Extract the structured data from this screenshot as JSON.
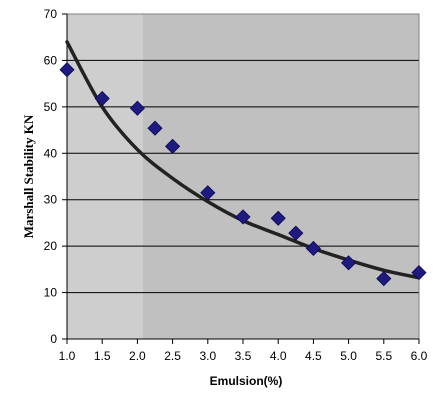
{
  "chart_data": {
    "type": "scatter",
    "title": "",
    "xlabel": "Emulsion(%)",
    "ylabel": "Marshall Stability KN",
    "xlim": [
      1.0,
      6.0
    ],
    "ylim": [
      0,
      70
    ],
    "x_ticks": [
      "1.0",
      "1.5",
      "2.0",
      "2.5",
      "3.0",
      "3.5",
      "4.0",
      "4.5",
      "5.0",
      "5.5",
      "6.0"
    ],
    "y_ticks": [
      "0",
      "10",
      "20",
      "30",
      "40",
      "50",
      "60",
      "70"
    ],
    "grid": "horizontal",
    "legend": "none",
    "series": [
      {
        "marker": "diamond",
        "color": "#1f1a80",
        "x": [
          1.0,
          1.5,
          2.0,
          2.25,
          2.5,
          3.0,
          3.5,
          4.0,
          4.25,
          4.5,
          5.0,
          5.5,
          6.0
        ],
        "y": [
          58.0,
          51.8,
          49.7,
          45.4,
          41.5,
          31.5,
          26.3,
          26.0,
          22.8,
          19.5,
          16.4,
          13.0,
          14.3
        ]
      }
    ],
    "trendline": {
      "kind": "logarithmic",
      "color": "#222222",
      "x": [
        1.0,
        1.5,
        2.0,
        2.5,
        3.0,
        3.5,
        4.0,
        4.5,
        5.0,
        5.5,
        6.0
      ],
      "y": [
        64.0,
        50.0,
        40.8,
        34.6,
        29.6,
        25.5,
        22.5,
        19.5,
        17.0,
        14.8,
        13.2
      ]
    },
    "plot_background": "#c0c0c0",
    "plot_background_left": "#cecece"
  }
}
